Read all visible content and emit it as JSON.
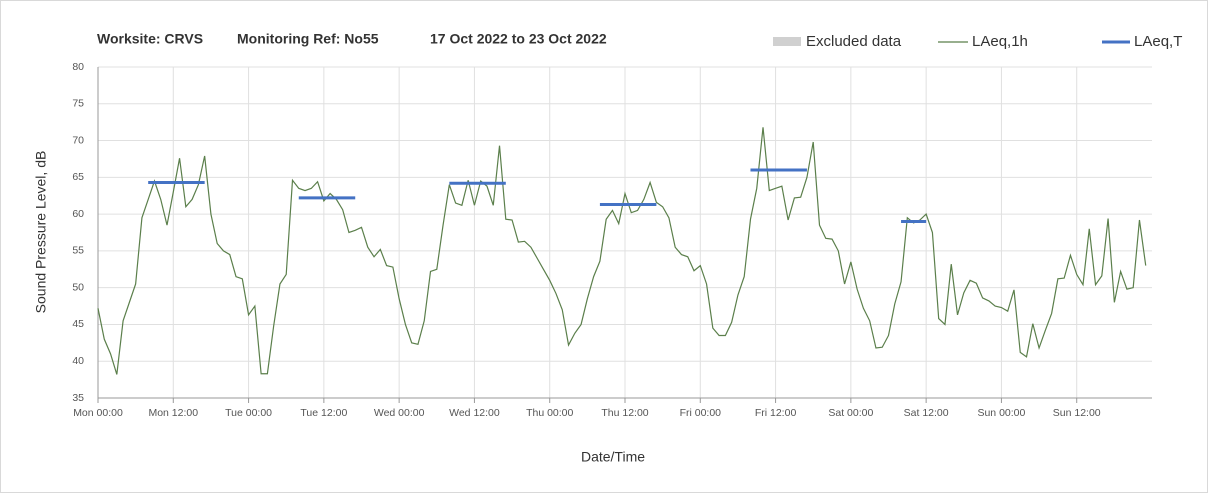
{
  "chart_data": {
    "type": "line",
    "title_parts": [
      "Worksite: CRVS",
      "Monitoring Ref: No55",
      "17 Oct 2022 to 23 Oct 2022"
    ],
    "y_label": "Sound Pressure Level, dB",
    "x_label": "Date/Time",
    "x": [
      0,
      1,
      2,
      3,
      4,
      5,
      6,
      7,
      8,
      9,
      10,
      11,
      12,
      13,
      14,
      15,
      16,
      17,
      18,
      19,
      20,
      21,
      22,
      23,
      24,
      25,
      26,
      27,
      28,
      29,
      30,
      31,
      32,
      33,
      34,
      35,
      36,
      37,
      38,
      39,
      40,
      41,
      42,
      43,
      44,
      45,
      46,
      47,
      48,
      49,
      50,
      51,
      52,
      53,
      54,
      55,
      56,
      57,
      58,
      59,
      60,
      61,
      62,
      63,
      64,
      65,
      66,
      67,
      68,
      69,
      70,
      71,
      72,
      73,
      74,
      75,
      76,
      77,
      78,
      79,
      80,
      81,
      82,
      83,
      84,
      85,
      86,
      87,
      88,
      89,
      90,
      91,
      92,
      93,
      94,
      95,
      96,
      97,
      98,
      99,
      100,
      101,
      102,
      103,
      104,
      105,
      106,
      107,
      108,
      109,
      110,
      111,
      112,
      113,
      114,
      115,
      116,
      117,
      118,
      119,
      120,
      121,
      122,
      123,
      124,
      125,
      126,
      127,
      128,
      129,
      130,
      131,
      132,
      133,
      134,
      135,
      136,
      137,
      138,
      139,
      140,
      141,
      142,
      143,
      144,
      145,
      146,
      147,
      148,
      149,
      150,
      151,
      152,
      153,
      154,
      155,
      156,
      157,
      158,
      159,
      160,
      161,
      162,
      163,
      164,
      165,
      166,
      167
    ],
    "series": [
      {
        "name": "LAeq,1h",
        "color": "#5b7f4b",
        "values": [
          47.2,
          43,
          41,
          38.2,
          45.5,
          48,
          50.5,
          59.5,
          62,
          64.5,
          62,
          58.5,
          63,
          67.6,
          61,
          62,
          64,
          67.9,
          60,
          56,
          55,
          54.5,
          51.5,
          51.2,
          46.3,
          47.5,
          38.3,
          38.3,
          44.8,
          50.5,
          51.8,
          64.6,
          63.5,
          63.2,
          63.5,
          64.4,
          61.8,
          62.8,
          62,
          60.6,
          57.5,
          57.8,
          58.2,
          55.5,
          54.2,
          55.2,
          53,
          52.8,
          48.5,
          45,
          42.5,
          42.3,
          45.5,
          52.2,
          52.5,
          58.5,
          64,
          61.5,
          61.2,
          64.6,
          61.2,
          64.5,
          63.8,
          61.2,
          69.3,
          59.3,
          59.2,
          56.2,
          56.3,
          55.5,
          54,
          52.5,
          51,
          49.2,
          47,
          42.2,
          43.8,
          45,
          48.5,
          51.5,
          53.6,
          59.3,
          60.5,
          58.7,
          62.8,
          60.2,
          60.5,
          62,
          64.3,
          61.6,
          61,
          59.5,
          55.5,
          54.5,
          54.2,
          52.3,
          53,
          50.5,
          44.5,
          43.5,
          43.5,
          45.3,
          49,
          51.5,
          59.3,
          63.5,
          71.8,
          63.2,
          63.5,
          63.8,
          59.2,
          62.2,
          62.3,
          65,
          69.8,
          58.5,
          56.7,
          56.6,
          55,
          50.5,
          53.5,
          49.8,
          47.2,
          45.5,
          41.8,
          41.9,
          43.5,
          47.8,
          50.8,
          59.5,
          58.8,
          59.2,
          60,
          57.5,
          45.8,
          45,
          53.2,
          46.3,
          49.3,
          51,
          50.6,
          48.6,
          48.2,
          47.5,
          47.3,
          46.8,
          49.7,
          41.2,
          40.6,
          45.1,
          41.8,
          44.2,
          46.5,
          51.2,
          51.3,
          54.4,
          51.8,
          50.4,
          58,
          50.4,
          51.6,
          59.4,
          48,
          52.2,
          49.8,
          50,
          59.2,
          53
        ]
      }
    ],
    "levels": {
      "name": "LAeq,T",
      "color": "#4472c4",
      "start": [
        8,
        32,
        56,
        80,
        104,
        128
      ],
      "end": [
        17,
        41,
        65,
        89,
        113,
        132
      ],
      "values": [
        64.3,
        62.2,
        64.2,
        61.3,
        66.0,
        59.0
      ]
    },
    "excluded": {
      "name": "Excluded data",
      "color": "#d0d0d0"
    },
    "xlim": [
      0,
      168
    ],
    "xticks": [
      {
        "value": 0,
        "label": "Mon 00:00"
      },
      {
        "value": 12,
        "label": "Mon 12:00"
      },
      {
        "value": 24,
        "label": "Tue 00:00"
      },
      {
        "value": 36,
        "label": "Tue 12:00"
      },
      {
        "value": 48,
        "label": "Wed 00:00"
      },
      {
        "value": 60,
        "label": "Wed 12:00"
      },
      {
        "value": 72,
        "label": "Thu 00:00"
      },
      {
        "value": 84,
        "label": "Thu 12:00"
      },
      {
        "value": 96,
        "label": "Fri 00:00"
      },
      {
        "value": 108,
        "label": "Fri 12:00"
      },
      {
        "value": 120,
        "label": "Sat 00:00"
      },
      {
        "value": 132,
        "label": "Sat 12:00"
      },
      {
        "value": 144,
        "label": "Sun 00:00"
      },
      {
        "value": 156,
        "label": "Sun 12:00"
      }
    ],
    "ylim": [
      35,
      80
    ],
    "yticks": [
      35,
      40,
      45,
      50,
      55,
      60,
      65,
      70,
      75,
      80
    ],
    "grid": true
  }
}
